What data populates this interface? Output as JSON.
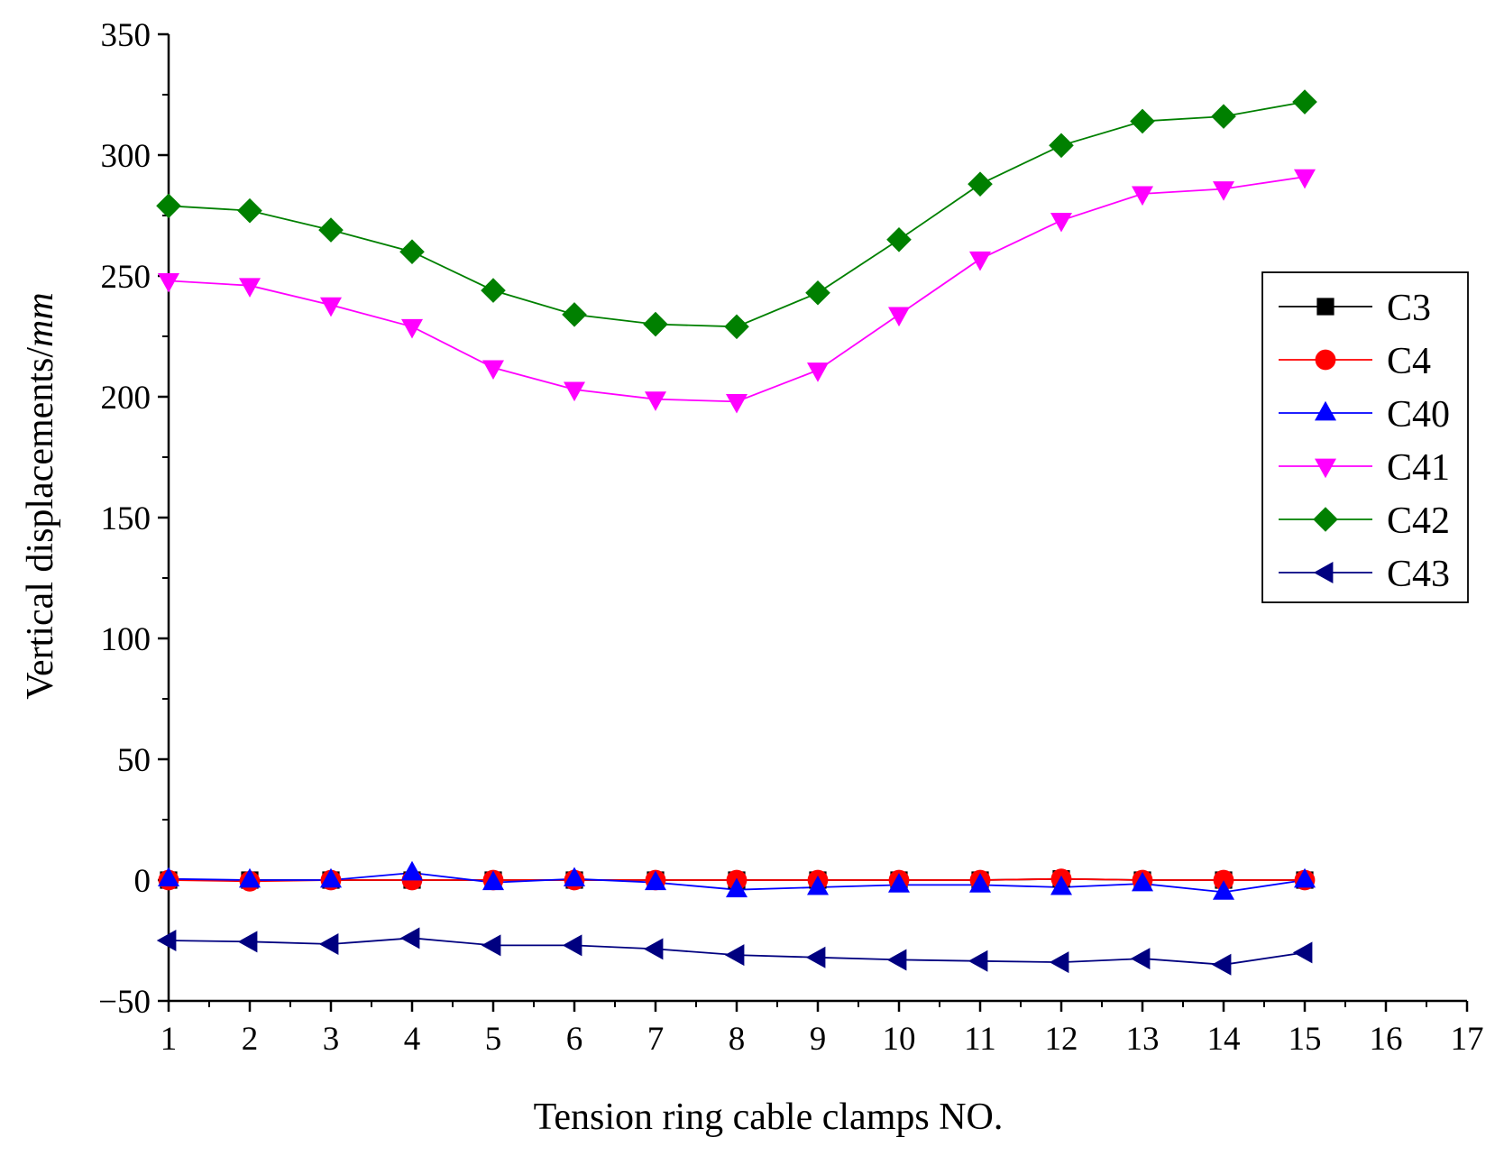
{
  "chart_data": {
    "type": "line",
    "title": "",
    "xlabel": "Tension ring cable clamps NO.",
    "ylabel": "Vertical displacements/",
    "ylabel_unit": "mm",
    "xlim": [
      1,
      17
    ],
    "ylim": [
      -50,
      350
    ],
    "xticks": [
      1,
      2,
      3,
      4,
      5,
      6,
      7,
      8,
      9,
      10,
      11,
      12,
      13,
      14,
      15,
      16,
      17
    ],
    "yticks": [
      -50,
      0,
      50,
      100,
      150,
      200,
      250,
      300,
      350
    ],
    "x": [
      1,
      2,
      3,
      4,
      5,
      6,
      7,
      8,
      9,
      10,
      11,
      12,
      13,
      14,
      15
    ],
    "legend_position": "right",
    "series": [
      {
        "name": "C3",
        "color": "#000000",
        "marker": "square",
        "values": [
          0,
          0,
          0,
          0,
          0,
          0,
          0,
          0,
          0,
          0,
          0,
          0.5,
          0,
          0,
          0
        ]
      },
      {
        "name": "C4",
        "color": "#ff0000",
        "marker": "circle",
        "values": [
          0,
          -0.5,
          0,
          0,
          0,
          0,
          0,
          0,
          0,
          0,
          0,
          0.5,
          0,
          0,
          0
        ]
      },
      {
        "name": "C40",
        "color": "#0000ff",
        "marker": "triangle-up",
        "values": [
          0.5,
          0,
          0,
          3,
          -1,
          0.5,
          -1,
          -4,
          -3,
          -2,
          -2,
          -3,
          -1.5,
          -5,
          0
        ]
      },
      {
        "name": "C41",
        "color": "#ff00ff",
        "marker": "triangle-down",
        "values": [
          248,
          246,
          238,
          229,
          212,
          203,
          199,
          198,
          211,
          234,
          257,
          273,
          284,
          286,
          291
        ]
      },
      {
        "name": "C42",
        "color": "#008000",
        "marker": "diamond",
        "values": [
          279,
          277,
          269,
          260,
          244,
          234,
          230,
          229,
          243,
          265,
          288,
          304,
          314,
          316,
          322
        ]
      },
      {
        "name": "C43",
        "color": "#000080",
        "marker": "triangle-left",
        "values": [
          -25,
          -25.5,
          -26.5,
          -24,
          -27,
          -27,
          -28.5,
          -31,
          -32,
          -33,
          -33.5,
          -34,
          -32.5,
          -35,
          -30
        ]
      }
    ]
  }
}
